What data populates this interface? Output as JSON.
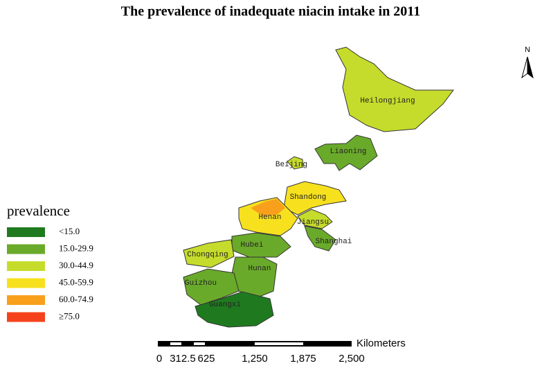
{
  "title": "The prevalence of inadequate niacin intake in 2011",
  "legend": {
    "title": "prevalence",
    "items": [
      {
        "label": "<15.0",
        "color": "#1f7a1f"
      },
      {
        "label": "15.0-29.9",
        "color": "#6aaa2a"
      },
      {
        "label": "30.0-44.9",
        "color": "#c6dc2c"
      },
      {
        "label": "45.0-59.9",
        "color": "#f7e11f"
      },
      {
        "label": "60.0-74.9",
        "color": "#f8a01c"
      },
      {
        "label": "≥75.0",
        "color": "#f5421c"
      }
    ]
  },
  "provinces": [
    {
      "name": "Heilongjiang",
      "color": "#c6dc2c"
    },
    {
      "name": "Liaoning",
      "color": "#6aaa2a"
    },
    {
      "name": "Beijing",
      "color": "#c6dc2c"
    },
    {
      "name": "Shandong",
      "color": "#f7e11f"
    },
    {
      "name": "Henan",
      "color": "#f7e11f"
    },
    {
      "name": "Jiangsu",
      "color": "#c6dc2c"
    },
    {
      "name": "Shanghai",
      "color": "#6aaa2a"
    },
    {
      "name": "Hubei",
      "color": "#6aaa2a"
    },
    {
      "name": "Chongqing",
      "color": "#c6dc2c"
    },
    {
      "name": "Hunan",
      "color": "#6aaa2a"
    },
    {
      "name": "Guizhou",
      "color": "#6aaa2a"
    },
    {
      "name": "Guangxi",
      "color": "#1f7a1f"
    }
  ],
  "scale_bar": {
    "unit": "Kilometers",
    "labels": [
      "0",
      "312.5",
      "625",
      "1,250",
      "1,875",
      "2,500"
    ]
  },
  "north": "N"
}
